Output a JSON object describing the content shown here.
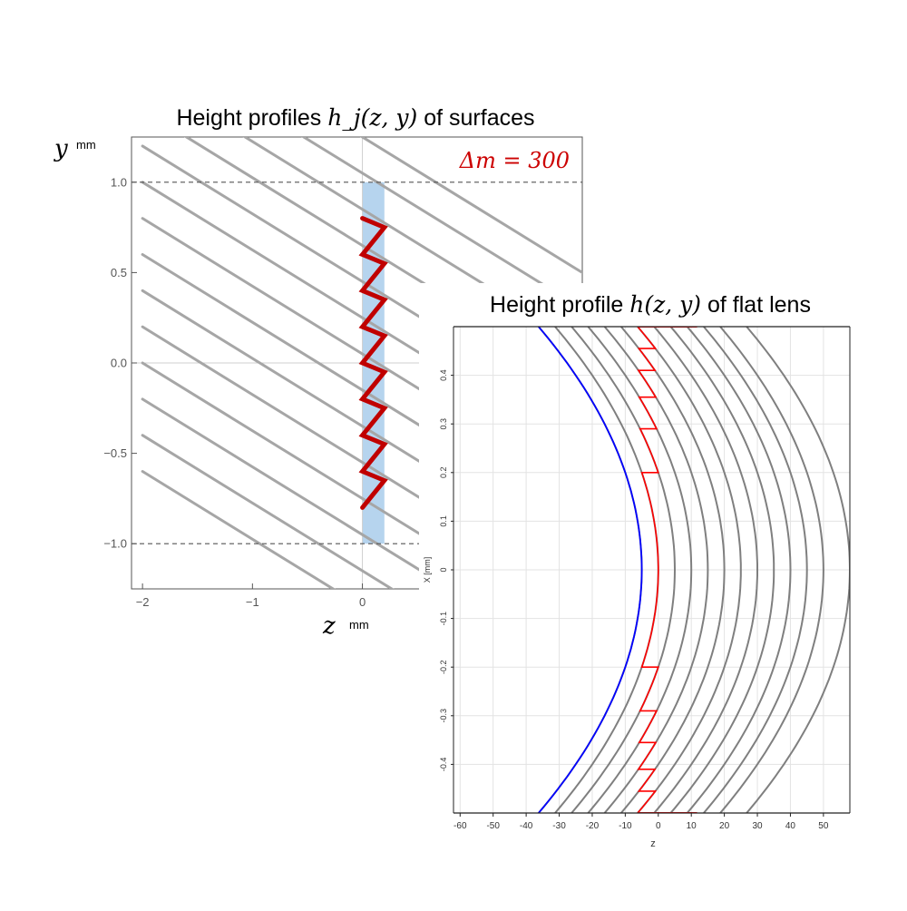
{
  "chart_data": [
    {
      "type": "line",
      "title": "Height profiles h_j(z, y) of surfaces",
      "title_text": "Height profiles ",
      "title_math": "h_j(z, y)",
      "title_tail": " of surfaces",
      "xlabel": "z",
      "xunit": "mm",
      "ylabel": "y",
      "yunit": "mm",
      "annotation": "Δm = 300",
      "annotation_color": "#cc0000",
      "xlim": [
        -2.1,
        2.0
      ],
      "ylim": [
        -1.25,
        1.25
      ],
      "xticks": [
        -2,
        -1,
        0
      ],
      "xtick_labels": [
        "−2",
        "−1",
        "0"
      ],
      "yticks": [
        -1.0,
        -0.5,
        0.0,
        0.5,
        1.0
      ],
      "ytick_labels": [
        "−1.0",
        "−0.5",
        "0.0",
        "0.5",
        "1.0"
      ],
      "dashed_lines_y": [
        -1.0,
        1.0
      ],
      "aperture_band": {
        "z_from": 0.0,
        "z_to": 0.2,
        "y_from": -1.0,
        "y_to": 1.0,
        "color": "#a9cdeb"
      },
      "series": [
        {
          "values": [
            [
              -2.0,
              1.0
            ],
            [
              2.0,
              -0.5
            ]
          ]
        },
        {
          "values": [
            [
              -2.0,
              0.8
            ],
            [
              2.0,
              -0.7
            ]
          ]
        },
        {
          "values": [
            [
              -2.0,
              0.6
            ],
            [
              2.0,
              -0.9
            ]
          ]
        },
        {
          "values": [
            [
              -2.0,
              0.4
            ],
            [
              2.0,
              -1.1
            ]
          ]
        },
        {
          "values": [
            [
              -2.0,
              0.2
            ],
            [
              2.0,
              -1.3
            ]
          ]
        },
        {
          "values": [
            [
              -2.0,
              0.0
            ],
            [
              2.0,
              -1.5
            ]
          ]
        },
        {
          "values": [
            [
              -2.0,
              -0.2
            ],
            [
              2.0,
              -1.7
            ]
          ]
        },
        {
          "values": [
            [
              -2.0,
              -0.4
            ],
            [
              2.0,
              -1.9
            ]
          ]
        },
        {
          "values": [
            [
              -2.0,
              -0.6
            ],
            [
              2.0,
              -2.1
            ]
          ]
        },
        {
          "values": [
            [
              -2.0,
              1.2
            ],
            [
              2.0,
              -0.3
            ]
          ]
        },
        {
          "values": [
            [
              -2.0,
              1.4
            ],
            [
              2.0,
              -0.1
            ]
          ]
        },
        {
          "values": [
            [
              -2.0,
              1.6
            ],
            [
              2.0,
              0.1
            ]
          ]
        },
        {
          "values": [
            [
              -2.0,
              1.8
            ],
            [
              2.0,
              0.3
            ]
          ]
        },
        {
          "values": [
            [
              -2.0,
              2.0
            ],
            [
              2.0,
              0.5
            ]
          ]
        }
      ],
      "line_color": "#a6a6a6",
      "profile": {
        "color": "#c00000",
        "values": [
          [
            0.0,
            0.8
          ],
          [
            0.2,
            0.75
          ],
          [
            0.0,
            0.6
          ],
          [
            0.2,
            0.55
          ],
          [
            0.0,
            0.4
          ],
          [
            0.2,
            0.35
          ],
          [
            0.0,
            0.2
          ],
          [
            0.2,
            0.15
          ],
          [
            0.0,
            0.0
          ],
          [
            0.2,
            -0.05
          ],
          [
            0.0,
            -0.2
          ],
          [
            0.2,
            -0.25
          ],
          [
            0.0,
            -0.4
          ],
          [
            0.2,
            -0.45
          ],
          [
            0.0,
            -0.6
          ],
          [
            0.2,
            -0.65
          ],
          [
            0.0,
            -0.8
          ]
        ]
      }
    },
    {
      "type": "line",
      "title": "Height profile h(z, y) of flat lens",
      "title_text": "Height profile ",
      "title_math": "h(z, y)",
      "title_tail": " of flat lens",
      "xlabel": "z",
      "ylabel": "X [mm]",
      "xlim": [
        -62,
        58
      ],
      "ylim": [
        -0.5,
        0.5
      ],
      "xticks": [
        -60,
        -50,
        -40,
        -30,
        -20,
        -10,
        0,
        10,
        20,
        30,
        40,
        50
      ],
      "xtick_labels": [
        "-60",
        "-50",
        "-40",
        "-30",
        "-20",
        "-10",
        "0",
        "10",
        "20",
        "30",
        "40",
        "50"
      ],
      "yticks": [
        0.4,
        0.3,
        0.2,
        0.1,
        0,
        -0.1,
        -0.2,
        -0.3,
        -0.4
      ],
      "ytick_labels": [
        "0.4",
        "0.3",
        "0.2",
        "0.1",
        "0",
        "-0.1",
        "-0.2",
        "-0.3",
        "-0.4"
      ],
      "gray_curves": {
        "color": "#7f7f7f",
        "vertex_z": [
          -5,
          0,
          5,
          10,
          15,
          20,
          25,
          30,
          35,
          40,
          45,
          50,
          58
        ],
        "curvature": 125
      },
      "blue_curve": {
        "color": "#0000ff",
        "vertex_z": -5,
        "curvature": 125
      },
      "red_profile": {
        "color": "#ff0000",
        "vertex_z": 0,
        "curvature": 125,
        "step_depth": 5,
        "zone_edges_x": [
          0.2,
          0.29,
          0.355,
          0.41,
          0.455,
          0.5
        ]
      }
    }
  ]
}
